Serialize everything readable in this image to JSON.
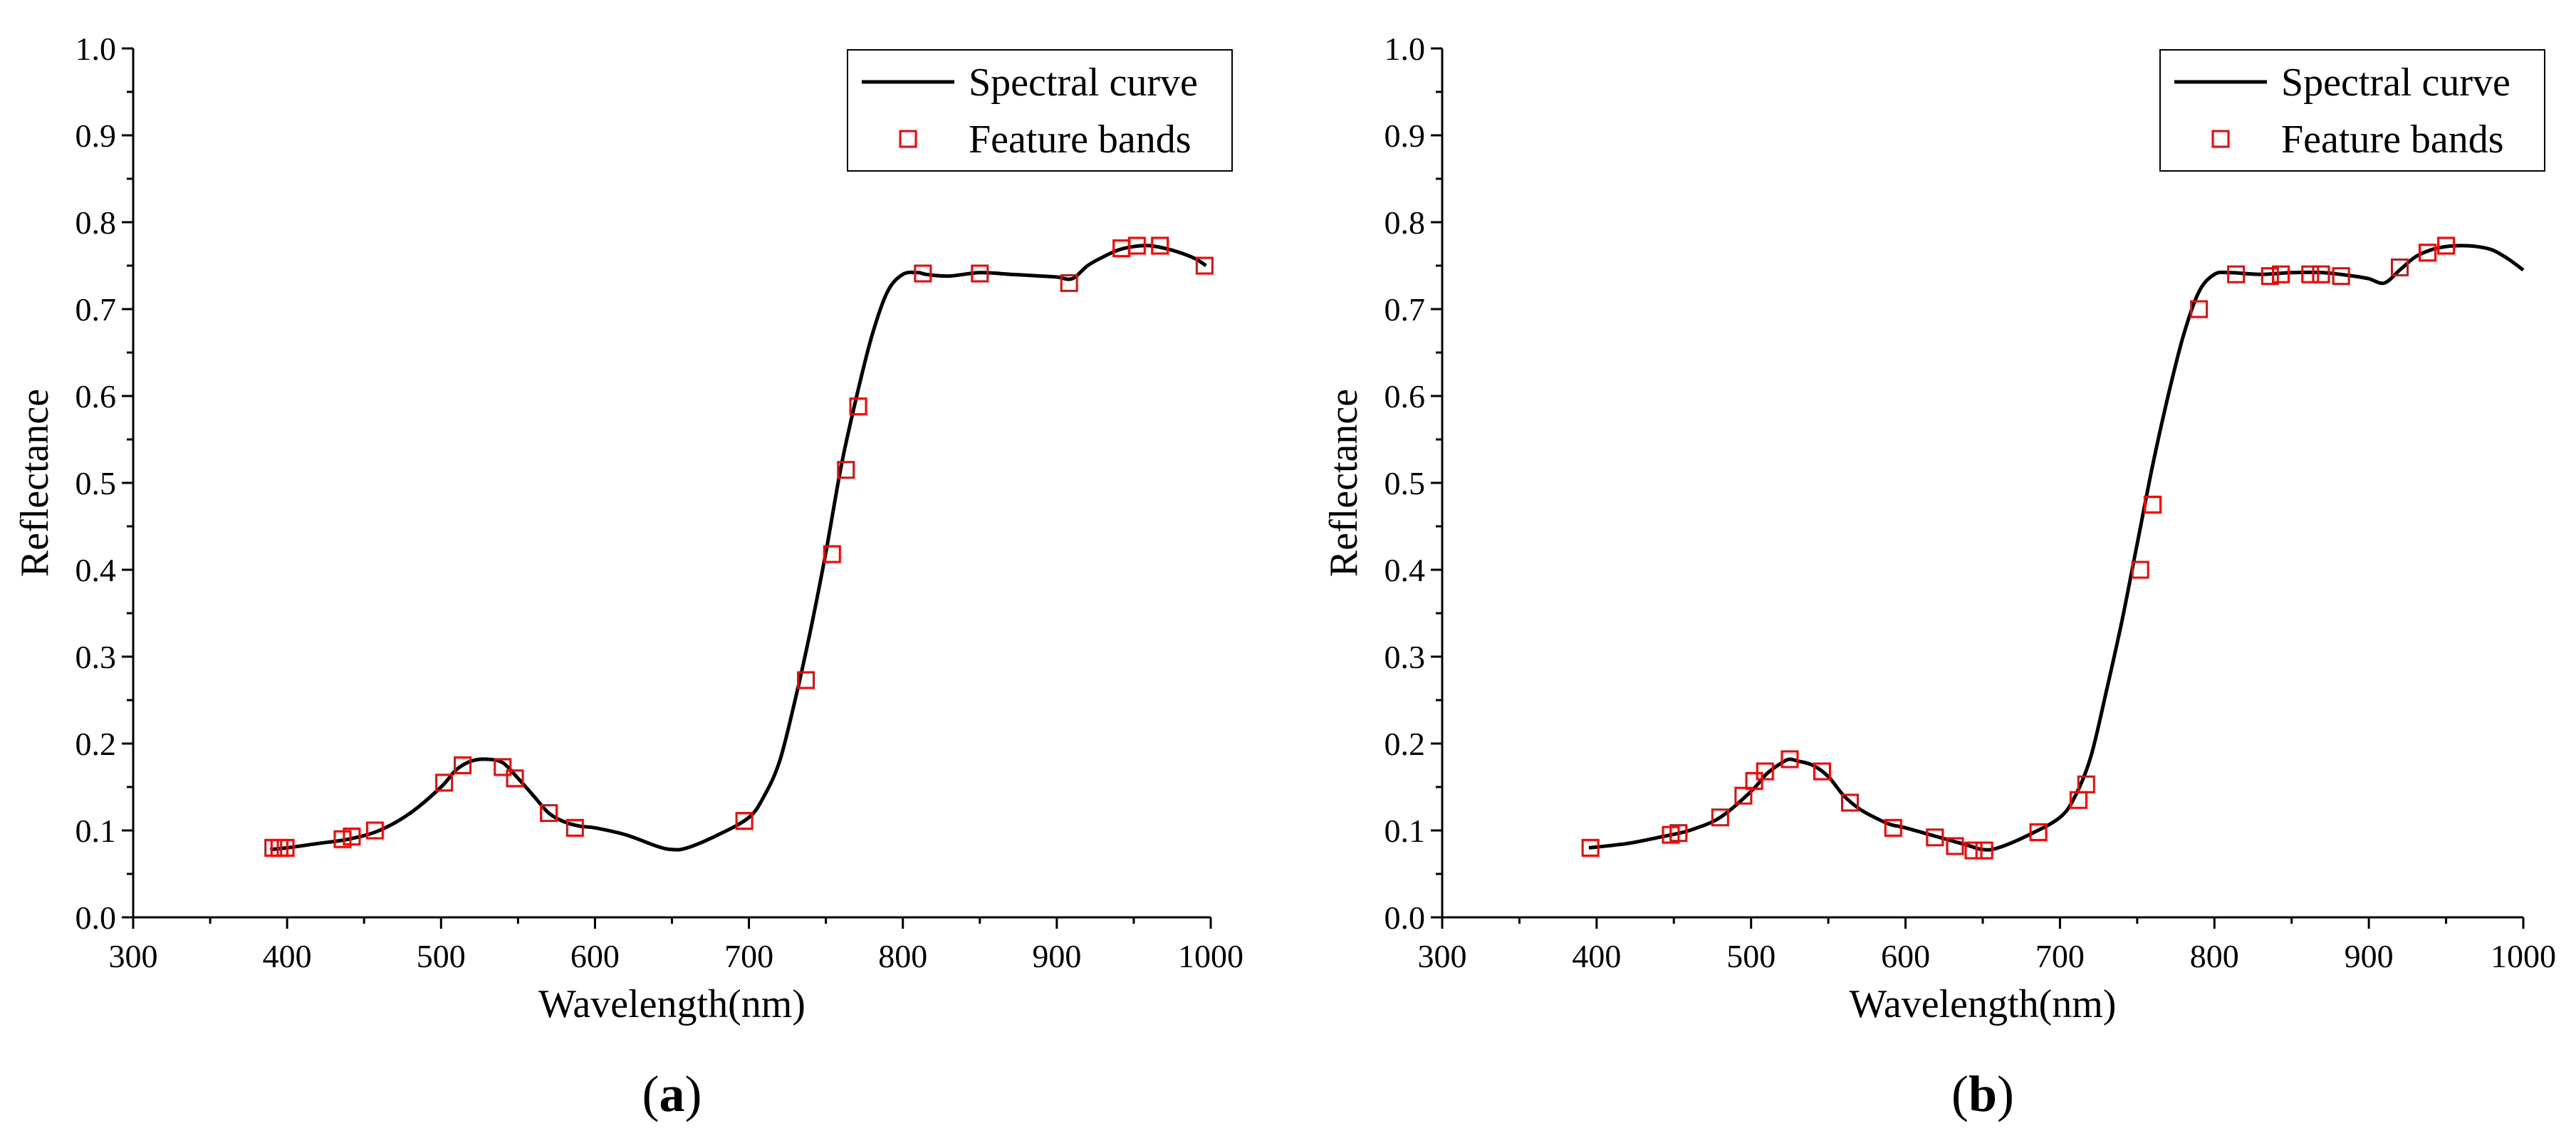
{
  "chart_data": [
    {
      "type": "line",
      "panel_label": "a",
      "xlabel": "Wavelength(nm)",
      "ylabel": "Reflectance",
      "xlim": [
        300,
        1000
      ],
      "ylim": [
        0.0,
        1.0
      ],
      "x_ticks": [
        "300",
        "400",
        "500",
        "600",
        "700",
        "800",
        "900",
        "1000"
      ],
      "y_ticks": [
        "0.0",
        "0.1",
        "0.2",
        "0.3",
        "0.4",
        "0.5",
        "0.6",
        "0.7",
        "0.8",
        "0.9",
        "1.0"
      ],
      "legend": {
        "position": "top-right",
        "entries": [
          "Spectral curve",
          "Feature bands"
        ]
      },
      "colors": {
        "curve": "#000000",
        "markers": "#ff0000"
      },
      "series": [
        {
          "name": "Spectral curve",
          "x": [
            389,
            400,
            420,
            440,
            460,
            480,
            500,
            510,
            520,
            530,
            540,
            550,
            560,
            570,
            580,
            590,
            600,
            620,
            640,
            650,
            660,
            680,
            700,
            710,
            720,
            730,
            740,
            750,
            760,
            770,
            780,
            790,
            800,
            810,
            815,
            830,
            850,
            870,
            890,
            900,
            910,
            920,
            930,
            940,
            950,
            960,
            970,
            980,
            990,
            997
          ],
          "y": [
            0.078,
            0.08,
            0.085,
            0.09,
            0.1,
            0.12,
            0.15,
            0.17,
            0.18,
            0.182,
            0.178,
            0.16,
            0.14,
            0.12,
            0.11,
            0.105,
            0.103,
            0.095,
            0.082,
            0.078,
            0.08,
            0.095,
            0.115,
            0.14,
            0.18,
            0.25,
            0.33,
            0.42,
            0.52,
            0.6,
            0.67,
            0.72,
            0.74,
            0.742,
            0.74,
            0.738,
            0.742,
            0.74,
            0.738,
            0.737,
            0.735,
            0.75,
            0.76,
            0.768,
            0.772,
            0.773,
            0.77,
            0.765,
            0.758,
            0.75
          ]
        },
        {
          "name": "Feature bands",
          "x": [
            391,
            395,
            399,
            436,
            442,
            457,
            502,
            514,
            540,
            548,
            570,
            587,
            697,
            737,
            754,
            763,
            771,
            813,
            850,
            908,
            942,
            952,
            967,
            996
          ],
          "y": [
            0.08,
            0.08,
            0.08,
            0.09,
            0.093,
            0.1,
            0.155,
            0.175,
            0.173,
            0.16,
            0.12,
            0.103,
            0.111,
            0.273,
            0.418,
            0.515,
            0.588,
            0.741,
            0.741,
            0.73,
            0.77,
            0.773,
            0.773,
            0.75
          ]
        }
      ]
    },
    {
      "type": "line",
      "panel_label": "b",
      "xlabel": "Wavelength(nm)",
      "ylabel": "Reflectance",
      "xlim": [
        300,
        1000
      ],
      "ylim": [
        0.0,
        1.0
      ],
      "x_ticks": [
        "300",
        "400",
        "500",
        "600",
        "700",
        "800",
        "900",
        "1000"
      ],
      "y_ticks": [
        "0.0",
        "0.1",
        "0.2",
        "0.3",
        "0.4",
        "0.5",
        "0.6",
        "0.7",
        "0.8",
        "0.9",
        "1.0"
      ],
      "legend": {
        "position": "top-right",
        "entries": [
          "Spectral curve",
          "Feature bands"
        ]
      },
      "colors": {
        "curve": "#000000",
        "markers": "#ff0000"
      },
      "series": [
        {
          "name": "Spectral curve",
          "x": [
            395,
            420,
            440,
            460,
            480,
            500,
            510,
            520,
            525,
            530,
            540,
            550,
            560,
            570,
            580,
            590,
            600,
            620,
            640,
            650,
            660,
            680,
            700,
            710,
            720,
            730,
            740,
            750,
            760,
            770,
            780,
            790,
            800,
            810,
            830,
            850,
            870,
            890,
            900,
            910,
            920,
            930,
            940,
            950,
            960,
            970,
            980,
            990,
            1000
          ],
          "y": [
            0.08,
            0.085,
            0.092,
            0.1,
            0.115,
            0.145,
            0.165,
            0.178,
            0.182,
            0.18,
            0.175,
            0.162,
            0.14,
            0.125,
            0.115,
            0.107,
            0.103,
            0.093,
            0.083,
            0.078,
            0.08,
            0.095,
            0.115,
            0.14,
            0.185,
            0.26,
            0.34,
            0.43,
            0.52,
            0.6,
            0.67,
            0.72,
            0.74,
            0.742,
            0.74,
            0.742,
            0.742,
            0.738,
            0.735,
            0.73,
            0.745,
            0.76,
            0.768,
            0.772,
            0.773,
            0.772,
            0.768,
            0.758,
            0.745
          ]
        },
        {
          "name": "Feature bands",
          "x": [
            396,
            448,
            453,
            480,
            495,
            502,
            509,
            525,
            546,
            564,
            592,
            619,
            632,
            644,
            651,
            686,
            712,
            717,
            752,
            760,
            790,
            814,
            836,
            843,
            862,
            869,
            882,
            920,
            938,
            950
          ],
          "y": [
            0.08,
            0.095,
            0.097,
            0.115,
            0.14,
            0.157,
            0.168,
            0.182,
            0.168,
            0.132,
            0.103,
            0.092,
            0.082,
            0.077,
            0.077,
            0.098,
            0.135,
            0.153,
            0.4,
            0.475,
            0.7,
            0.74,
            0.738,
            0.74,
            0.74,
            0.74,
            0.738,
            0.748,
            0.765,
            0.773
          ]
        }
      ]
    }
  ]
}
